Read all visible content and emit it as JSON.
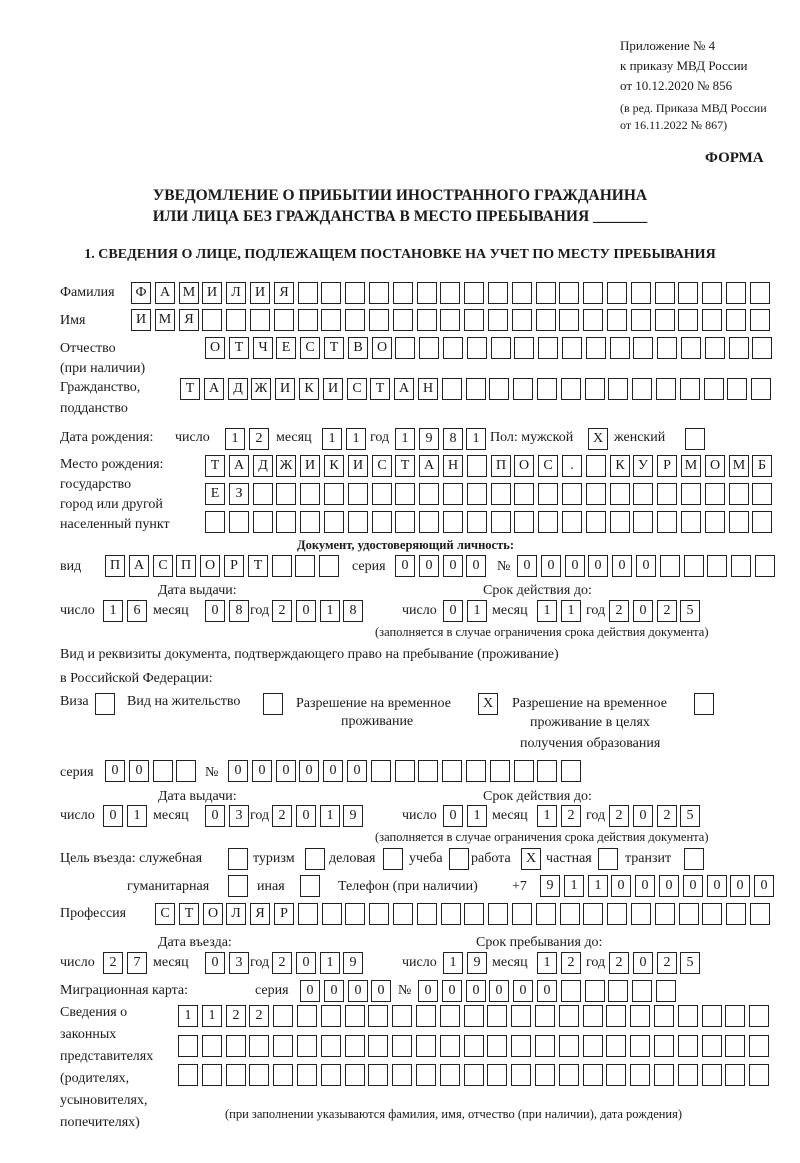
{
  "header": {
    "appendix": "Приложение № 4",
    "order_line": "к приказу МВД России",
    "order_date": "от 10.12.2020 № 856",
    "edition_line1": "(в ред. Приказа МВД России",
    "edition_line2": "от 16.11.2022 № 867)",
    "form_label": "ФОРМА",
    "title_line1": "УВЕДОМЛЕНИЕ О ПРИБЫТИИ ИНОСТРАННОГО ГРАЖДАНИНА",
    "title_line2": "ИЛИ ЛИЦА БЕЗ ГРАЖДАНСТВА В МЕСТО ПРЕБЫВАНИЯ _______",
    "section1": "1. СВЕДЕНИЯ О ЛИЦЕ, ПОДЛЕЖАЩЕМ ПОСТАНОВКЕ НА УЧЕТ ПО МЕСТУ ПРЕБЫВАНИЯ"
  },
  "labels": {
    "surname": "Фамилия",
    "name": "Имя",
    "patronymic1": "Отчество",
    "patronymic2": "(при наличии)",
    "citizenship1": "Гражданство,",
    "citizenship2": "подданство",
    "birth_date": "Дата рождения:",
    "day": "число",
    "month": "месяц",
    "year": "год",
    "sex": "Пол: мужской",
    "female": "женский",
    "birthplace1": "Место рождения:",
    "birthplace2": "государство",
    "birthplace3": "город или другой",
    "birthplace4": "населенный пункт",
    "id_doc": "Документ, удостоверяющий личность:",
    "kind": "вид",
    "series": "серия",
    "number": "№",
    "issue_date": "Дата выдачи:",
    "valid_until": "Срок действия до:",
    "validity_note": "(заполняется в случае ограничения срока действия документа)",
    "residence_doc1": "Вид и реквизиты документа, подтверждающего право на пребывание (проживание)",
    "residence_doc2": "в Российской Федерации:",
    "visa": "Виза",
    "residence_permit": "Вид на жительство",
    "temp_permit1": "Разрешение на временное",
    "temp_permit2": "проживание",
    "edu_permit1": "Разрешение на временное",
    "edu_permit2": "проживание в целях",
    "edu_permit3": "получения образования",
    "purpose": "Цель въезда: служебная",
    "tourism": "туризм",
    "business": "деловая",
    "study": "учеба",
    "work": "работа",
    "private": "частная",
    "transit": "транзит",
    "humanitarian": "гуманитарная",
    "other": "иная",
    "phone": "Телефон (при наличии)",
    "phone_prefix": "+7",
    "profession": "Профессия",
    "entry_date": "Дата въезда:",
    "stay_until": "Срок пребывания до:",
    "migration_card": "Миграционная карта:",
    "reps1": "Сведения о",
    "reps2": "законных",
    "reps3": "представителях",
    "reps4": "(родителях,",
    "reps5": "усыновителях,",
    "reps6": "попечителях)",
    "reps_note": "(при заполнении указываются фамилия, имя, отчество (при наличии), дата рождения)"
  },
  "person": {
    "surname": "ФАМИЛИЯ",
    "name": "ИМЯ",
    "patronymic": "ОТЧЕСТВО",
    "citizenship": "ТАДЖИКИСТАН",
    "birth_day": "12",
    "birth_month": "11",
    "birth_year": "1981",
    "male": "X",
    "female": "",
    "birthplace_row1": "ТАДЖИКИСТАН ПОС. КУРМОМБ",
    "birthplace_row2": "ЕЗ",
    "birthplace_row3": ""
  },
  "id_document": {
    "kind": "ПАСПОРТ",
    "series": "0000",
    "number": "000000",
    "issue_day": "16",
    "issue_month": "08",
    "issue_year": "2018",
    "valid_day": "01",
    "valid_month": "11",
    "valid_year": "2025"
  },
  "residence_document": {
    "visa": "",
    "residence_permit": "",
    "temp_permit": "X",
    "edu_permit": "",
    "series": "00",
    "number": "000000",
    "issue_day": "01",
    "issue_month": "03",
    "issue_year": "2019",
    "valid_day": "01",
    "valid_month": "12",
    "valid_year": "2025"
  },
  "purpose": {
    "official": "",
    "tourism": "",
    "business": "",
    "study": "",
    "work": "X",
    "private": "",
    "transit": "",
    "humanitarian": "",
    "other": ""
  },
  "phone": "9110000000",
  "profession": "СТОЛЯР",
  "entry": {
    "entry_day": "27",
    "entry_month": "03",
    "entry_year": "2019",
    "stay_day": "19",
    "stay_month": "12",
    "stay_year": "2025"
  },
  "migration_card": {
    "series": "0000",
    "number": "000000"
  },
  "representatives": {
    "row1": "1122",
    "row2": "",
    "row3": ""
  }
}
